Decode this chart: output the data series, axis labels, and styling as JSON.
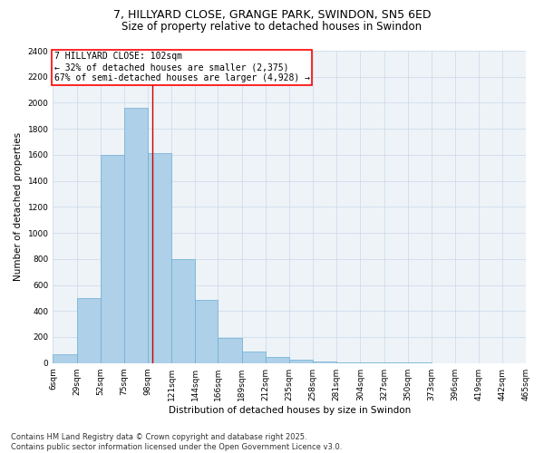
{
  "title": "7, HILLYARD CLOSE, GRANGE PARK, SWINDON, SN5 6ED",
  "subtitle": "Size of property relative to detached houses in Swindon",
  "xlabel": "Distribution of detached houses by size in Swindon",
  "ylabel": "Number of detached properties",
  "bar_color": "#aed0e8",
  "bar_edge_color": "#6baed6",
  "grid_color": "#c8d8e8",
  "background_color": "#eef3f8",
  "bin_edges": [
    6,
    29,
    52,
    75,
    98,
    121,
    144,
    166,
    189,
    212,
    235,
    258,
    281,
    304,
    327,
    350,
    373,
    396,
    419,
    442,
    465
  ],
  "bar_heights": [
    65,
    500,
    1600,
    1960,
    1610,
    800,
    485,
    195,
    88,
    45,
    27,
    15,
    8,
    4,
    3,
    2,
    1,
    0,
    1,
    0
  ],
  "vline_x": 102,
  "vline_color": "#cc0000",
  "annotation_title": "7 HILLYARD CLOSE: 102sqm",
  "annotation_line1": "← 32% of detached houses are smaller (2,375)",
  "annotation_line2": "67% of semi-detached houses are larger (4,928) →",
  "ylim": [
    0,
    2400
  ],
  "yticks": [
    0,
    200,
    400,
    600,
    800,
    1000,
    1200,
    1400,
    1600,
    1800,
    2000,
    2200,
    2400
  ],
  "xtick_labels": [
    "6sqm",
    "29sqm",
    "52sqm",
    "75sqm",
    "98sqm",
    "121sqm",
    "144sqm",
    "166sqm",
    "189sqm",
    "212sqm",
    "235sqm",
    "258sqm",
    "281sqm",
    "304sqm",
    "327sqm",
    "350sqm",
    "373sqm",
    "396sqm",
    "419sqm",
    "442sqm",
    "465sqm"
  ],
  "footer_line1": "Contains HM Land Registry data © Crown copyright and database right 2025.",
  "footer_line2": "Contains public sector information licensed under the Open Government Licence v3.0.",
  "title_fontsize": 9,
  "subtitle_fontsize": 8.5,
  "axis_label_fontsize": 7.5,
  "tick_fontsize": 6.5,
  "annotation_fontsize": 7,
  "footer_fontsize": 6
}
